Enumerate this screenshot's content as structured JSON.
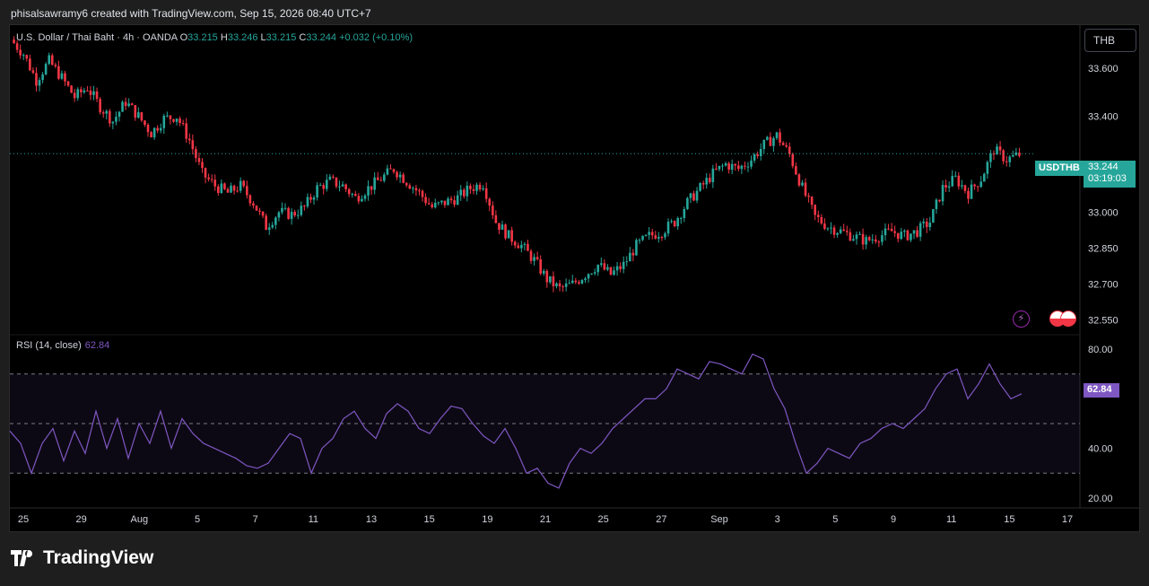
{
  "header": {
    "attribution": "phisalsawramy6 created with TradingView.com, Sep 15, 2026 08:40 UTC+7"
  },
  "legend": {
    "title": "U.S. Dollar / Thai Baht · 4h · OANDA",
    "o_label": "O",
    "o": "33.215",
    "h_label": "H",
    "h": "33.246",
    "l_label": "L",
    "l": "33.215",
    "c_label": "C",
    "c": "33.244",
    "change": "+0.032 (+0.10%)"
  },
  "currency_button": "THB",
  "symbol_tag": "USDTHB",
  "price_tag": {
    "price": "33.244",
    "countdown": "03:19:03"
  },
  "rsi": {
    "label": "RSI (14, close)",
    "value": "62.84"
  },
  "brand": "TradingView",
  "colors": {
    "up": "#26a69a",
    "down": "#f23645",
    "rsi": "#7e57c2",
    "background": "#000000"
  },
  "chart_data": {
    "type": "candlestick",
    "symbol": "USDTHB",
    "timeframe": "4h",
    "price_axis": {
      "ticks": [
        33.6,
        33.4,
        33.0,
        32.85,
        32.7,
        32.55
      ],
      "tick_labels": [
        "33.600",
        "33.400",
        "33.000",
        "32.850",
        "32.700",
        "32.550"
      ],
      "range": [
        32.5,
        33.78
      ]
    },
    "time_axis": {
      "labels": [
        "25",
        "29",
        "Aug",
        "5",
        "7",
        "11",
        "13",
        "15",
        "19",
        "21",
        "25",
        "27",
        "Sep",
        "3",
        "5",
        "9",
        "11",
        "15",
        "17"
      ]
    },
    "close_path": [
      [
        0,
        33.72
      ],
      [
        4,
        33.66
      ],
      [
        8,
        33.55
      ],
      [
        12,
        33.63
      ],
      [
        16,
        33.56
      ],
      [
        20,
        33.48
      ],
      [
        24,
        33.52
      ],
      [
        28,
        33.44
      ],
      [
        32,
        33.38
      ],
      [
        36,
        33.46
      ],
      [
        40,
        33.4
      ],
      [
        44,
        33.33
      ],
      [
        48,
        33.39
      ],
      [
        52,
        33.4
      ],
      [
        56,
        33.3
      ],
      [
        60,
        33.16
      ],
      [
        64,
        33.11
      ],
      [
        68,
        33.08
      ],
      [
        72,
        33.11
      ],
      [
        76,
        33.04
      ],
      [
        80,
        32.94
      ],
      [
        84,
        33.0
      ],
      [
        88,
        32.99
      ],
      [
        92,
        33.02
      ],
      [
        96,
        33.1
      ],
      [
        100,
        33.13
      ],
      [
        104,
        33.11
      ],
      [
        108,
        33.06
      ],
      [
        112,
        33.1
      ],
      [
        116,
        33.14
      ],
      [
        120,
        33.18
      ],
      [
        124,
        33.13
      ],
      [
        128,
        33.08
      ],
      [
        132,
        33.02
      ],
      [
        136,
        33.04
      ],
      [
        140,
        33.06
      ],
      [
        144,
        33.1
      ],
      [
        148,
        33.12
      ],
      [
        152,
        32.96
      ],
      [
        156,
        32.9
      ],
      [
        160,
        32.86
      ],
      [
        164,
        32.8
      ],
      [
        168,
        32.72
      ],
      [
        172,
        32.68
      ],
      [
        176,
        32.7
      ],
      [
        180,
        32.74
      ],
      [
        184,
        32.78
      ],
      [
        188,
        32.74
      ],
      [
        192,
        32.78
      ],
      [
        196,
        32.86
      ],
      [
        200,
        32.9
      ],
      [
        204,
        32.92
      ],
      [
        208,
        32.96
      ],
      [
        212,
        33.04
      ],
      [
        216,
        33.1
      ],
      [
        220,
        33.16
      ],
      [
        224,
        33.2
      ],
      [
        228,
        33.18
      ],
      [
        232,
        33.22
      ],
      [
        236,
        33.28
      ],
      [
        240,
        33.32
      ],
      [
        244,
        33.24
      ],
      [
        248,
        33.1
      ],
      [
        252,
        32.98
      ],
      [
        256,
        32.94
      ],
      [
        260,
        32.92
      ],
      [
        264,
        32.9
      ],
      [
        268,
        32.88
      ],
      [
        272,
        32.9
      ],
      [
        276,
        32.92
      ],
      [
        280,
        32.9
      ],
      [
        284,
        32.92
      ],
      [
        288,
        32.96
      ],
      [
        292,
        33.1
      ],
      [
        296,
        33.14
      ],
      [
        300,
        33.08
      ],
      [
        304,
        33.14
      ],
      [
        308,
        33.26
      ],
      [
        312,
        33.22
      ],
      [
        316,
        33.24
      ]
    ],
    "last_close": 33.244,
    "rsi": {
      "name": "RSI (14, close)",
      "value": 62.84,
      "levels": [
        70,
        50,
        30
      ],
      "axis_ticks": [
        80,
        40,
        20
      ],
      "axis_tick_labels": [
        "80.00",
        "40.00",
        "20.00"
      ],
      "range": [
        16,
        84
      ],
      "values": [
        47,
        42,
        30,
        42,
        48,
        35,
        47,
        38,
        55,
        40,
        52,
        36,
        50,
        42,
        55,
        40,
        52,
        46,
        42,
        40,
        38,
        36,
        33,
        32,
        34,
        40,
        46,
        44,
        30,
        40,
        44,
        52,
        55,
        48,
        44,
        54,
        58,
        55,
        48,
        46,
        52,
        57,
        56,
        50,
        45,
        42,
        48,
        40,
        30,
        32,
        26,
        24,
        34,
        40,
        38,
        42,
        48,
        52,
        56,
        60,
        60,
        64,
        72,
        70,
        68,
        75,
        74,
        72,
        70,
        78,
        76,
        64,
        56,
        42,
        30,
        34,
        40,
        38,
        36,
        42,
        44,
        48,
        50,
        48,
        52,
        56,
        64,
        70,
        72,
        60,
        66,
        74,
        66,
        60,
        62
      ]
    }
  }
}
